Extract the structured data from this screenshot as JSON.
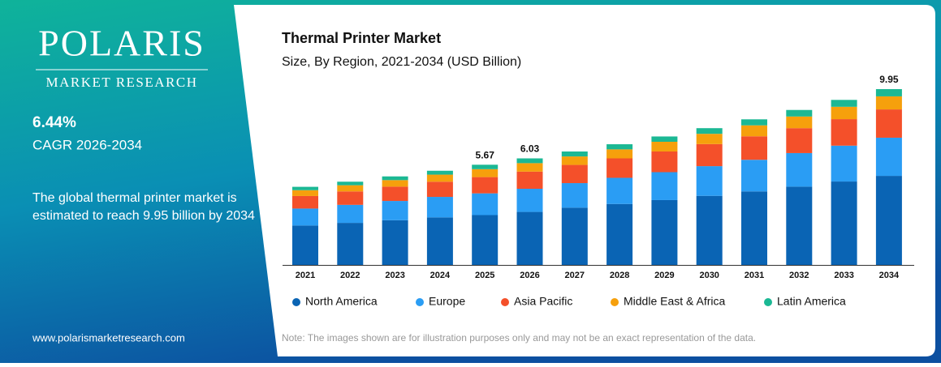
{
  "brand": {
    "name": "POLARIS",
    "tagline": "MARKET RESEARCH",
    "website": "www.polarismarketresearch.com"
  },
  "highlights": {
    "cagr": "6.44%",
    "cagr_label": "CAGR 2026-2034",
    "summary": "The global thermal printer market is estimated to reach 9.95 billion by 2034"
  },
  "note": "Note: The images shown are for illustration purposes only and may not be an exact representation of the data.",
  "chart_data": {
    "type": "stacked-bar",
    "title": "Thermal Printer Market",
    "subtitle": "Size, By Region, 2021-2034 (USD Billion)",
    "categories": [
      "2021",
      "2022",
      "2023",
      "2024",
      "2025",
      "2026",
      "2027",
      "2028",
      "2029",
      "2030",
      "2031",
      "2032",
      "2033",
      "2034"
    ],
    "series": [
      {
        "name": "North America",
        "color": "#0a64b4",
        "values": [
          2.23,
          2.38,
          2.53,
          2.69,
          2.82,
          3.0,
          3.24,
          3.45,
          3.67,
          3.91,
          4.16,
          4.43,
          4.72,
          5.04
        ]
      },
      {
        "name": "Europe",
        "color": "#2a9df4",
        "values": [
          0.96,
          1.02,
          1.09,
          1.16,
          1.23,
          1.31,
          1.39,
          1.48,
          1.58,
          1.68,
          1.79,
          1.9,
          2.03,
          2.16
        ]
      },
      {
        "name": "Asia Pacific",
        "color": "#f4502a",
        "values": [
          0.71,
          0.76,
          0.81,
          0.86,
          0.92,
          0.97,
          1.03,
          1.1,
          1.17,
          1.25,
          1.33,
          1.41,
          1.5,
          1.6
        ]
      },
      {
        "name": "Middle East & Africa",
        "color": "#f6a00c",
        "values": [
          0.33,
          0.35,
          0.37,
          0.4,
          0.45,
          0.48,
          0.48,
          0.51,
          0.55,
          0.58,
          0.62,
          0.66,
          0.7,
          0.74
        ]
      },
      {
        "name": "Latin America",
        "color": "#1bb894",
        "values": [
          0.19,
          0.2,
          0.21,
          0.22,
          0.25,
          0.27,
          0.28,
          0.29,
          0.3,
          0.32,
          0.34,
          0.37,
          0.39,
          0.41
        ]
      }
    ],
    "totals": [
      null,
      null,
      null,
      null,
      5.67,
      6.03,
      null,
      null,
      null,
      null,
      null,
      null,
      null,
      9.95
    ]
  }
}
